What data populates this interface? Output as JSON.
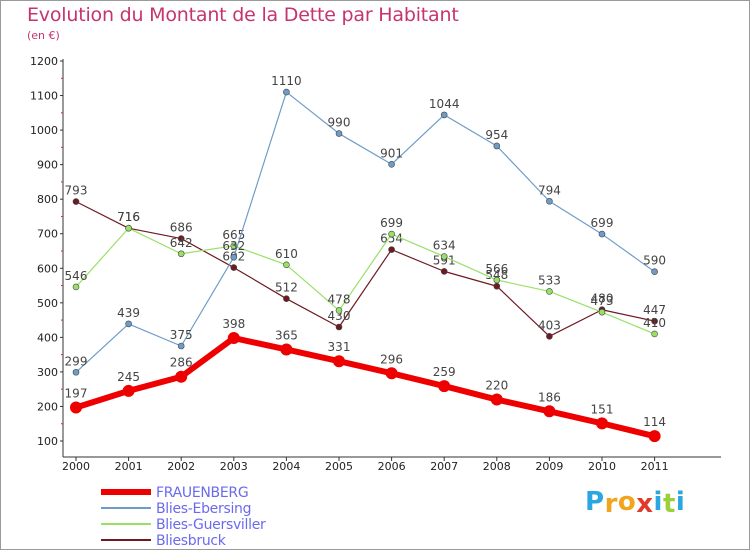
{
  "title": "Evolution du Montant de la Dette par Habitant",
  "subtitle": "(en €)",
  "brand": {
    "letters": [
      "P",
      "r",
      "o",
      "x",
      "i",
      "t",
      "i"
    ],
    "colors": [
      "#2aa7e0",
      "#f2a51c",
      "#f2a51c",
      "#e03a2a",
      "#2aa7e0",
      "#9dcf3a",
      "#2aa7e0"
    ]
  },
  "chart_data": {
    "type": "line",
    "title": "Evolution du Montant de la Dette par Habitant",
    "subtitle": "(en €)",
    "xlabel": "",
    "ylabel": "",
    "ylim": [
      100,
      1200
    ],
    "yticks": [
      100,
      200,
      300,
      400,
      500,
      600,
      700,
      800,
      900,
      1000,
      1100,
      1200
    ],
    "x": [
      "2000",
      "2001",
      "2002",
      "2003",
      "2004",
      "2005",
      "2006",
      "2007",
      "2008",
      "2009",
      "2010",
      "2011"
    ],
    "grid": false,
    "legend_position": "bottom-left",
    "series": [
      {
        "name": "Bliesbruck",
        "color": "#6e1a22",
        "width": 1.2,
        "values": [
          793,
          716,
          686,
          602,
          512,
          430,
          654,
          591,
          548,
          403,
          480,
          447
        ]
      },
      {
        "name": "Blies-Guersviller",
        "color": "#99e066",
        "width": 1.2,
        "values": [
          546,
          716,
          642,
          665,
          610,
          478,
          699,
          634,
          566,
          533,
          473,
          410
        ]
      },
      {
        "name": "Blies-Ebersing",
        "color": "#6e9cc8",
        "width": 1.2,
        "values": [
          299,
          439,
          375,
          632,
          1110,
          990,
          901,
          1044,
          954,
          794,
          699,
          590
        ]
      },
      {
        "name": "FRAUENBERG",
        "color": "#ee0000",
        "width": 6,
        "values": [
          197,
          245,
          286,
          398,
          365,
          331,
          296,
          259,
          220,
          186,
          151,
          114
        ]
      }
    ]
  },
  "legend": [
    {
      "name": "FRAUENBERG",
      "color": "#ee0000",
      "width": 6
    },
    {
      "name": "Blies-Ebersing",
      "color": "#6e9cc8",
      "width": 1.5
    },
    {
      "name": "Blies-Guersviller",
      "color": "#99e066",
      "width": 1.5
    },
    {
      "name": "Bliesbruck",
      "color": "#6e1a22",
      "width": 1.5
    }
  ]
}
